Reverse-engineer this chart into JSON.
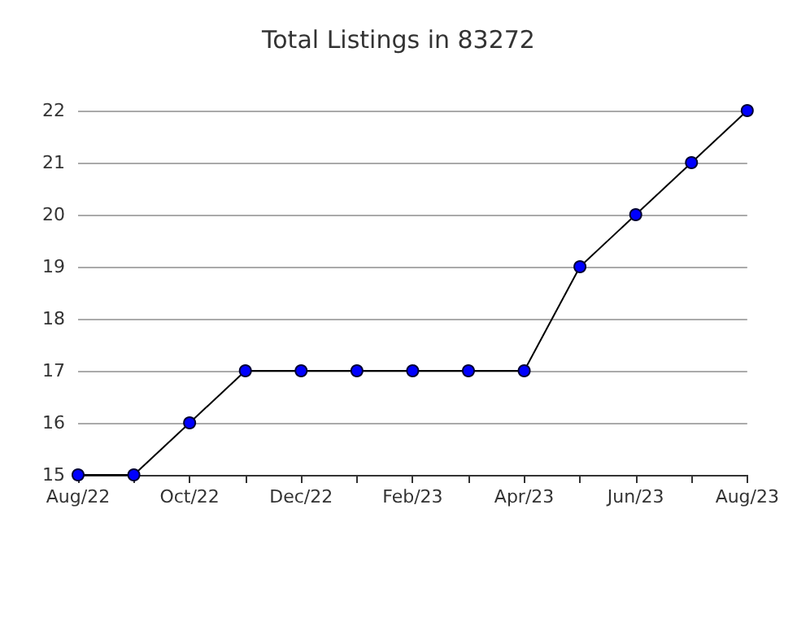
{
  "chart_data": {
    "type": "line",
    "title": "Total Listings in 83272",
    "categories": [
      "Aug/22",
      null,
      "Oct/22",
      null,
      "Dec/22",
      null,
      "Feb/23",
      null,
      "Apr/23",
      null,
      "Jun/23",
      null,
      "Aug/23"
    ],
    "series": [
      {
        "color": "#0000ff",
        "values": [
          15,
          15,
          16,
          17,
          17,
          17,
          17,
          17,
          17,
          19,
          20,
          21,
          22
        ]
      }
    ],
    "ylim": [
      15,
      22
    ],
    "yticks": [
      15,
      16,
      17,
      18,
      19,
      20,
      21,
      22
    ],
    "grid": "y",
    "marker": "circle",
    "line_style": "solid"
  }
}
